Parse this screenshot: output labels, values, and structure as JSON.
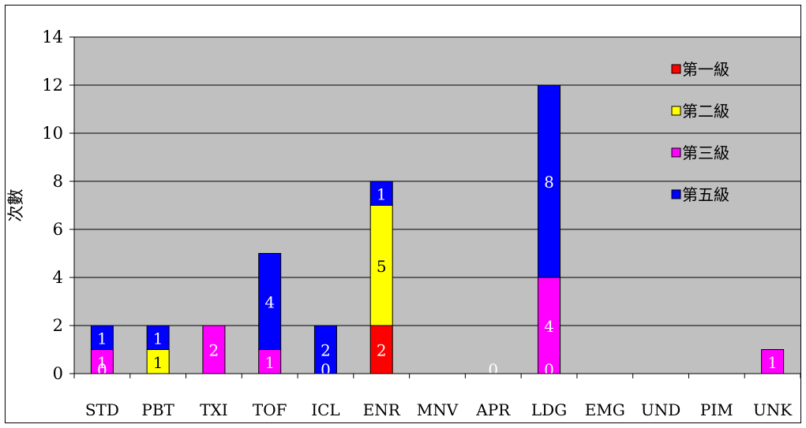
{
  "chart_data": {
    "type": "bar",
    "stacked": true,
    "ylabel": "次數",
    "ylim": [
      0,
      14
    ],
    "yticks": [
      0,
      2,
      4,
      6,
      8,
      10,
      12,
      14
    ],
    "grid": true,
    "legend_position": "top-right",
    "categories": [
      "STD",
      "PBT",
      "TXI",
      "TOF",
      "ICL",
      "ENR",
      "MNV",
      "APR",
      "LDG",
      "EMG",
      "UND",
      "PIM",
      "UNK"
    ],
    "series": [
      {
        "name": "第一級",
        "color": "#ff0000",
        "values": [
          0,
          0,
          0,
          0,
          0,
          2,
          0,
          0,
          0,
          0,
          0,
          0,
          0
        ]
      },
      {
        "name": "第二級",
        "color": "#ffff00",
        "values": [
          0,
          1,
          0,
          0,
          0,
          5,
          0,
          0,
          0,
          0,
          0,
          0,
          0
        ]
      },
      {
        "name": "第三級",
        "color": "#ff00ff",
        "values": [
          1,
          0,
          2,
          1,
          0,
          0,
          0,
          0,
          4,
          0,
          0,
          0,
          1
        ]
      },
      {
        "name": "第五級",
        "color": "#0000ff",
        "values": [
          1,
          1,
          0,
          4,
          2,
          1,
          0,
          0,
          8,
          0,
          0,
          0,
          0
        ]
      }
    ],
    "data_labels": [
      {
        "category": "STD",
        "value": 0
      },
      {
        "category": "STD",
        "value": 1
      },
      {
        "category": "STD",
        "value": 1
      },
      {
        "category": "PBT",
        "value": 1
      },
      {
        "category": "PBT",
        "value": 1
      },
      {
        "category": "TXI",
        "value": 2
      },
      {
        "category": "TOF",
        "value": 1
      },
      {
        "category": "TOF",
        "value": 4
      },
      {
        "category": "ICL",
        "value": 0
      },
      {
        "category": "ICL",
        "value": 2
      },
      {
        "category": "ENR",
        "value": 2
      },
      {
        "category": "ENR",
        "value": 5
      },
      {
        "category": "ENR",
        "value": 1
      },
      {
        "category": "APR",
        "value": 0
      },
      {
        "category": "LDG",
        "value": 0
      },
      {
        "category": "LDG",
        "value": 4
      },
      {
        "category": "LDG",
        "value": 8
      },
      {
        "category": "UNK",
        "value": 1
      }
    ]
  }
}
